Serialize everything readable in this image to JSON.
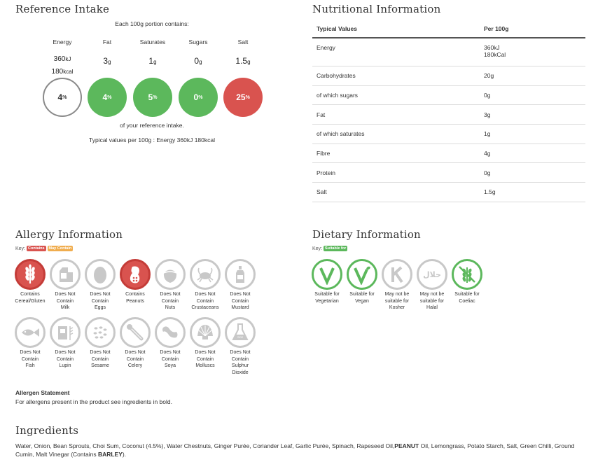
{
  "reference_intake": {
    "title": "Reference Intake",
    "subtitle": "Each 100g portion contains:",
    "items": [
      {
        "label": "Energy",
        "amount_line1": "360",
        "unit_line1": "kJ",
        "amount_line2": "180",
        "unit_line2": "kcal",
        "percent": "4",
        "status": "none"
      },
      {
        "label": "Fat",
        "amount": "3",
        "unit": "g",
        "percent": "4",
        "status": "green"
      },
      {
        "label": "Saturates",
        "amount": "1",
        "unit": "g",
        "percent": "5",
        "status": "green"
      },
      {
        "label": "Sugars",
        "amount": "0",
        "unit": "g",
        "percent": "0",
        "status": "green"
      },
      {
        "label": "Salt",
        "amount": "1.5",
        "unit": "g",
        "percent": "25",
        "status": "red"
      }
    ],
    "percent_symbol": "%",
    "caption": "of your reference intake.",
    "typical": "Typical values per 100g : Energy 360kJ 180kcal"
  },
  "nutritional_information": {
    "title": "Nutritional Information",
    "headers": [
      "Typical Values",
      "Per 100g"
    ],
    "rows": [
      {
        "name": "Energy",
        "value": "360kJ",
        "value2": "180kCal"
      },
      {
        "name": "Carbohydrates",
        "value": "20g"
      },
      {
        "name": "of which sugars",
        "value": "0g"
      },
      {
        "name": "Fat",
        "value": "3g"
      },
      {
        "name": "of which saturates",
        "value": "1g"
      },
      {
        "name": "Fibre",
        "value": "4g"
      },
      {
        "name": "Protein",
        "value": "0g"
      },
      {
        "name": "Salt",
        "value": "1.5g"
      }
    ]
  },
  "allergy": {
    "title": "Allergy Information",
    "key_label": "Key:",
    "key_contains": "Contains",
    "key_may_contain": "May Contain",
    "items": [
      {
        "icon": "wheat-icon",
        "lines": [
          "Contains",
          "Cereal/Gluten"
        ],
        "status": "contains"
      },
      {
        "icon": "milk-icon",
        "lines": [
          "Does Not",
          "Contain",
          "Milk"
        ],
        "status": "none"
      },
      {
        "icon": "egg-icon",
        "lines": [
          "Does Not",
          "Contain",
          "Eggs"
        ],
        "status": "none"
      },
      {
        "icon": "peanut-icon",
        "lines": [
          "Contains",
          "Peanuts"
        ],
        "status": "contains"
      },
      {
        "icon": "nut-icon",
        "lines": [
          "Does Not",
          "Contain",
          "Nuts"
        ],
        "status": "none"
      },
      {
        "icon": "crab-icon",
        "lines": [
          "Does Not",
          "Contain",
          "Crustaceans"
        ],
        "status": "none"
      },
      {
        "icon": "mustard-icon",
        "lines": [
          "Does Not",
          "Contain",
          "Mustard"
        ],
        "status": "none"
      },
      {
        "icon": "fish-icon",
        "lines": [
          "Does Not",
          "Contain",
          "Fish"
        ],
        "status": "none"
      },
      {
        "icon": "lupin-icon",
        "lines": [
          "Does Not",
          "Contain",
          "Lupin"
        ],
        "status": "none"
      },
      {
        "icon": "sesame-icon",
        "lines": [
          "Does Not",
          "Contain",
          "Sesame"
        ],
        "status": "none"
      },
      {
        "icon": "celery-icon",
        "lines": [
          "Does Not",
          "Contain",
          "Celery"
        ],
        "status": "none"
      },
      {
        "icon": "soya-icon",
        "lines": [
          "Does Not",
          "Contain",
          "Soya"
        ],
        "status": "none"
      },
      {
        "icon": "mollusc-icon",
        "lines": [
          "Does Not",
          "Contain",
          "Molluscs"
        ],
        "status": "none"
      },
      {
        "icon": "sulphur-flask-icon",
        "lines": [
          "Does Not",
          "Contain",
          "Sulphur",
          "Dioxide"
        ],
        "status": "none",
        "flask_label": "SO2"
      }
    ],
    "statement_title": "Allergen Statement",
    "statement": "For allergens present in the product see ingredients in bold."
  },
  "dietary": {
    "title": "Dietary Information",
    "key_label": "Key:",
    "key_suitable": "Suitable for",
    "items": [
      {
        "icon": "vegetarian-v-icon",
        "lines": [
          "Suitable for",
          "Vegetarian"
        ],
        "status": "suitable"
      },
      {
        "icon": "vegan-v-icon",
        "lines": [
          "Suitable for",
          "Vegan"
        ],
        "status": "suitable"
      },
      {
        "icon": "kosher-k-icon",
        "lines": [
          "May not be",
          "suitable for",
          "Kosher"
        ],
        "status": "none"
      },
      {
        "icon": "halal-icon",
        "lines": [
          "May not be",
          "suitable for",
          "Halal"
        ],
        "status": "none",
        "halal_glyph": "حلال"
      },
      {
        "icon": "coeliac-icon",
        "lines": [
          "Suitable for",
          "Coeliac"
        ],
        "status": "suitable"
      }
    ]
  },
  "ingredients": {
    "title": "Ingredients",
    "parts": [
      {
        "text": "Water, Onion, Bean Sprouts, Choi Sum, Coconut (4.5%), Water Chestnuts, Ginger Purée, Coriander Leaf, Garlic Purée, Spinach, Rapeseed Oil,",
        "bold": false
      },
      {
        "text": "PEANUT",
        "bold": true
      },
      {
        "text": " Oil, Lemongrass, Potato Starch, Salt, Green Chilli, Ground Cumin, Malt Vinegar (Contains ",
        "bold": false
      },
      {
        "text": "BARLEY",
        "bold": true
      },
      {
        "text": ").",
        "bold": false
      }
    ]
  },
  "colors": {
    "green": "#5cb85c",
    "red": "#d9534f",
    "orange": "#f0ad4e",
    "grey": "#c8c8c8"
  }
}
